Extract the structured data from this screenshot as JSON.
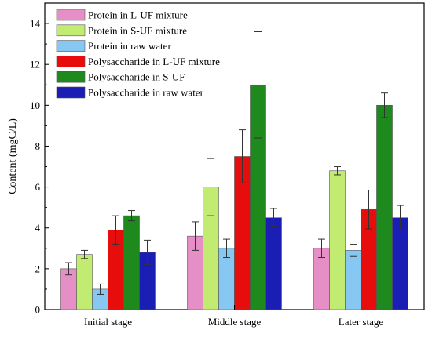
{
  "chart_data": {
    "type": "bar",
    "ylabel": "Content (mgC/L)",
    "xlabel": "",
    "ylim": [
      0,
      15
    ],
    "yticks": [
      0,
      2,
      4,
      6,
      8,
      10,
      12,
      14
    ],
    "categories": [
      "Initial stage",
      "Middle stage",
      "Later stage"
    ],
    "legend_position": "top-left",
    "grid": false,
    "series": [
      {
        "name": "Protein in L-UF mixture",
        "color": "#e58fc6",
        "values": [
          2.0,
          3.6,
          3.0
        ],
        "errors": [
          0.3,
          0.7,
          0.45
        ]
      },
      {
        "name": "Protein in S-UF mixture",
        "color": "#c2eb72",
        "values": [
          2.7,
          6.0,
          6.8
        ],
        "errors": [
          0.2,
          1.4,
          0.2
        ]
      },
      {
        "name": "Protein in raw water",
        "color": "#87c8f2",
        "values": [
          1.0,
          3.0,
          2.9
        ],
        "errors": [
          0.25,
          0.45,
          0.3
        ]
      },
      {
        "name": "Polysaccharide in L-UF mixture",
        "color": "#e80d0d",
        "values": [
          3.9,
          7.5,
          4.9
        ],
        "errors": [
          0.7,
          1.3,
          0.95
        ]
      },
      {
        "name": "Polysaccharide in S-UF",
        "color": "#1e8a1e",
        "values": [
          4.6,
          11.0,
          10.0
        ],
        "errors": [
          0.25,
          2.6,
          0.6
        ]
      },
      {
        "name": "Polysaccharide in raw water",
        "color": "#1a1eb4",
        "values": [
          2.8,
          4.5,
          4.5
        ],
        "errors": [
          0.6,
          0.45,
          0.6
        ]
      }
    ]
  }
}
